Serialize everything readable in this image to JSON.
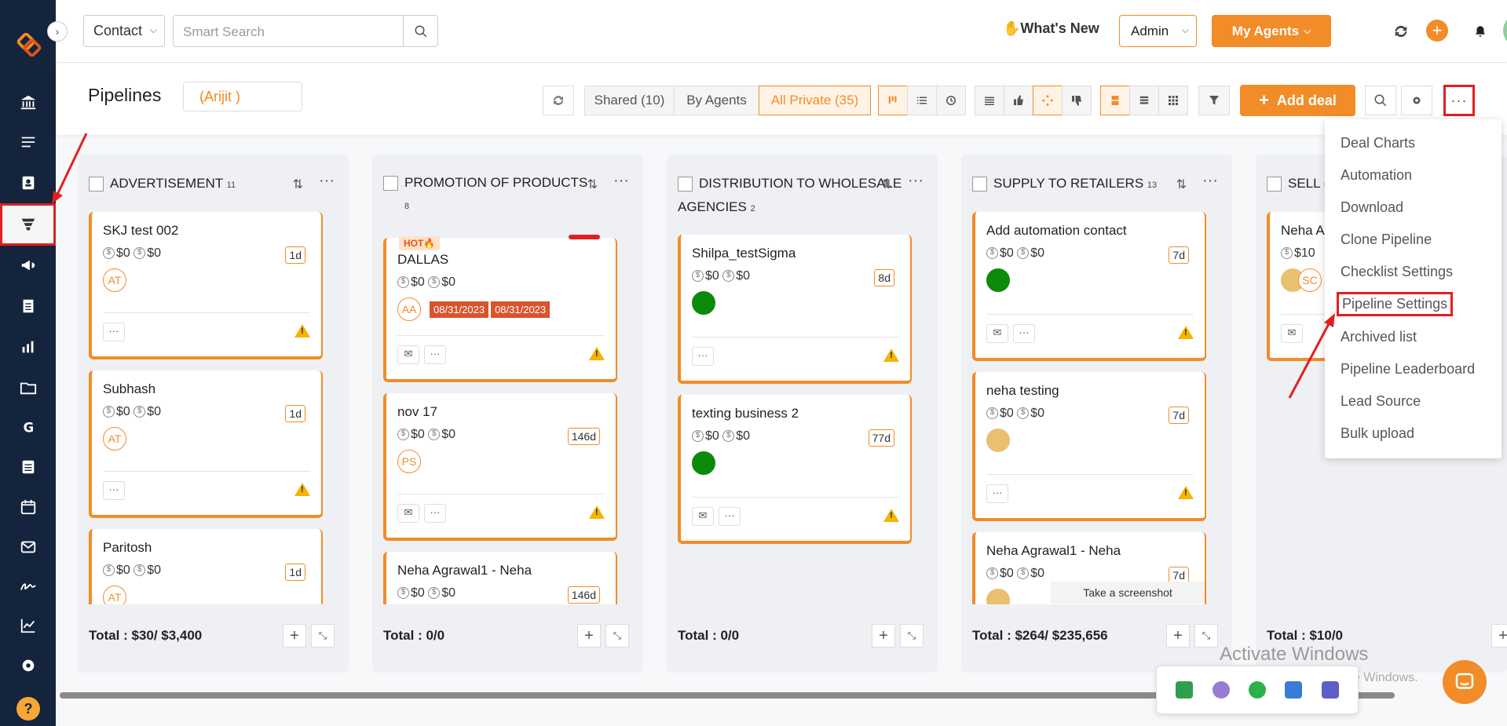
{
  "topbar": {
    "contact_select": "Contact",
    "search_placeholder": "Smart Search",
    "whats_new": "What's New",
    "admin_select": "Admin",
    "my_agents": "My Agents"
  },
  "toolbar": {
    "title": "Pipelines",
    "owner": "(Arijit )",
    "shared": "Shared (10)",
    "by_agents": "By Agents",
    "all_private": "All Private (35)",
    "add_deal": "Add deal"
  },
  "columns": [
    {
      "title": "ADVERTISEMENT",
      "count": "11",
      "total": "Total : $30/ $3,400",
      "cards": [
        {
          "title": "SKJ test 002",
          "amount1": "$0",
          "amount2": "$0",
          "age": "1d",
          "avatar": "AT"
        },
        {
          "title": "Subhash",
          "amount1": "$0",
          "amount2": "$0",
          "age": "1d",
          "avatar": "AT"
        },
        {
          "title": "Paritosh",
          "amount1": "$0",
          "amount2": "$0",
          "age": "1d",
          "avatar": "AT"
        }
      ]
    },
    {
      "title": "PROMOTION OF PRODUCTS",
      "count": "8",
      "total": "Total : 0/0",
      "cards": [
        {
          "title": "DALLAS",
          "amount1": "$0",
          "amount2": "$0",
          "age": "",
          "avatar": "AA",
          "badge": "HOT",
          "date1": "08/31/2023",
          "date2": "08/31/2023"
        },
        {
          "title": "nov 17",
          "amount1": "$0",
          "amount2": "$0",
          "age": "146d",
          "avatar": "PS"
        },
        {
          "title": "Neha Agrawal1 - Neha",
          "amount1": "$0",
          "amount2": "$0",
          "age": "146d",
          "avatar": ""
        }
      ]
    },
    {
      "title": "DISTRIBUTION TO WHOLESALE AGENCIES",
      "count": "2",
      "total": "Total : 0/0",
      "cards": [
        {
          "title": "Shilpa_testSigma",
          "amount1": "$0",
          "amount2": "$0",
          "age": "8d",
          "avatar": ""
        },
        {
          "title": "texting business 2",
          "amount1": "$0",
          "amount2": "$0",
          "age": "77d",
          "avatar": ""
        }
      ]
    },
    {
      "title": "SUPPLY TO RETAILERS",
      "count": "13",
      "total": "Total : $264/ $235,656",
      "cards": [
        {
          "title": "Add automation contact",
          "amount1": "$0",
          "amount2": "$0",
          "age": "7d",
          "avatar": ""
        },
        {
          "title": "neha testing",
          "amount1": "$0",
          "amount2": "$0",
          "age": "7d",
          "avatar": ""
        },
        {
          "title": "Neha Agrawal1 - Neha",
          "amount1": "$0",
          "amount2": "$0",
          "age": "7d",
          "avatar": ""
        }
      ]
    },
    {
      "title": "SELL (",
      "count": "",
      "total": "Total : $10/0",
      "cards": [
        {
          "title": "Neha A",
          "amount1": "$10",
          "amount2": "",
          "age": "",
          "avatar": "SC"
        }
      ]
    }
  ],
  "menu": {
    "items": [
      "Deal Charts",
      "Automation",
      "Download",
      "Clone Pipeline",
      "Checklist Settings",
      "Pipeline Settings",
      "Archived list",
      "Pipeline Leaderboard",
      "Lead Source",
      "Bulk upload"
    ]
  },
  "overlay": {
    "tooltip": "Take a screenshot",
    "activate_title": "Activate Windows",
    "activate_sub": "Go to Settings to activate Windows."
  },
  "colors": {
    "accent": "#f28c28",
    "sidebar": "#14243c",
    "highlight": "#e02020"
  }
}
